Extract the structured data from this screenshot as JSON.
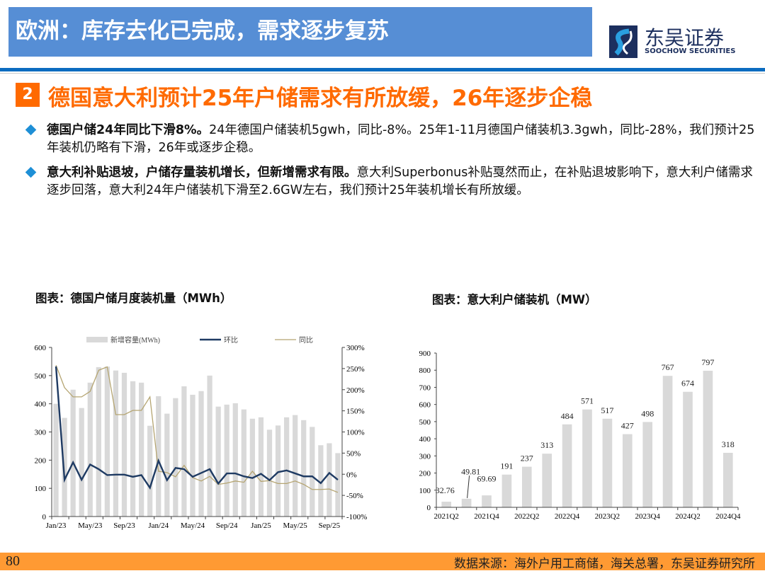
{
  "header": {
    "title": "欧洲：库存去化已完成，需求逐步复苏",
    "logo_cn": "东吴证券",
    "logo_en": "SOOCHOW SECURITIES"
  },
  "section": {
    "number": "2",
    "heading": "德国意大利预计25年户储需求有所放缓，26年逐步企稳"
  },
  "bullets": [
    {
      "bold": "德国户储24年同比下滑8%。",
      "text": "24年德国户储装机5gwh，同比-8%。25年1-11月德国户储装机3.3gwh，同比-28%，我们预计25年装机仍略有下滑，26年或逐步企稳。"
    },
    {
      "bold": "意大利补贴退坡，户储存量装机增长，但新增需求有限。",
      "text": "意大利Superbonus补贴戛然而止，在补贴退坡影响下，意大利户储需求逐步回落，意大利24年户储装机下滑至2.6GW左右，我们预计25年装机增长有所放缓。"
    }
  ],
  "colors": {
    "banner": "#568ed5",
    "accent_orange": "#ff6a00",
    "bullet": "#1e8fd6",
    "bar": "#d9d9d9",
    "mom_line": "#1f3b63",
    "yoy_line": "#b5a572",
    "footer": "#ff9a33"
  },
  "chart_data": [
    {
      "type": "bar+line",
      "title": "图表：德国户储月度装机量（MWh）",
      "categories": [
        "Jan/23",
        "Feb/23",
        "Mar/23",
        "Apr/23",
        "May/23",
        "Jun/23",
        "Jul/23",
        "Aug/23",
        "Sep/23",
        "Oct/23",
        "Nov/23",
        "Dec/23",
        "Jan/24",
        "Feb/24",
        "Mar/24",
        "Apr/24",
        "May/24",
        "Jun/24",
        "Jul/24",
        "Aug/24",
        "Sep/24",
        "Oct/24",
        "Nov/24",
        "Dec/24",
        "Jan/25",
        "Feb/25",
        "Mar/25",
        "Apr/25",
        "May/25",
        "Jun/25",
        "Jul/25",
        "Aug/25",
        "Sep/25",
        "Oct/25"
      ],
      "x_tick_labels": [
        "Jan/23",
        "May/23",
        "Sep/23",
        "Jan/24",
        "May/24",
        "Sep/24",
        "Jan/25",
        "May/25",
        "Sep/25"
      ],
      "series": [
        {
          "name": "新增容量(MWh)",
          "axis": "left",
          "kind": "bar",
          "values": [
            400,
            350,
            450,
            385,
            475,
            530,
            532,
            518,
            510,
            480,
            475,
            322,
            427,
            365,
            420,
            462,
            432,
            445,
            500,
            390,
            397,
            402,
            380,
            347,
            352,
            308,
            323,
            352,
            360,
            342,
            318,
            253,
            260,
            225
          ]
        },
        {
          "name": "环比",
          "axis": "right",
          "kind": "line",
          "values": [
            255,
            -13,
            28,
            -13,
            23,
            12,
            -2,
            -1,
            -1,
            -6,
            -2,
            -32,
            32,
            -14,
            15,
            12,
            -6,
            3,
            12,
            -22,
            2,
            2,
            -5,
            -9,
            1,
            -14,
            5,
            9,
            2,
            -5,
            -5,
            -21,
            3,
            -13
          ]
        },
        {
          "name": "同比",
          "axis": "right",
          "kind": "line",
          "values": [
            258,
            205,
            183,
            183,
            196,
            246,
            254,
            141,
            141,
            151,
            151,
            183,
            7,
            4,
            -6,
            21,
            -8,
            -16,
            -5,
            -24,
            -21,
            -16,
            -19,
            7,
            -17,
            -15,
            -22,
            -22,
            -16,
            -24,
            -36,
            -36,
            -35,
            -43
          ]
        }
      ],
      "ylim_left": [
        0,
        600
      ],
      "yticks_left": [
        "0",
        "100",
        "200",
        "300",
        "400",
        "500",
        "600"
      ],
      "ylim_right": [
        -100,
        300
      ],
      "yticks_right": [
        "-100%",
        "-50%",
        "0%",
        "50%",
        "100%",
        "150%",
        "200%",
        "250%",
        "300%"
      ],
      "legend": "top",
      "grid": false
    },
    {
      "type": "bar",
      "title": "图表：意大利户储装机（MW）",
      "categories": [
        "2021Q2",
        "2021Q3",
        "2021Q4",
        "2022Q1",
        "2022Q2",
        "2022Q3",
        "2022Q4",
        "2023Q1",
        "2023Q2",
        "2023Q3",
        "2023Q4",
        "2024Q1",
        "2024Q2",
        "2024Q3",
        "2024Q4"
      ],
      "x_tick_labels": [
        "2021Q2",
        "2021Q4",
        "2022Q2",
        "2022Q4",
        "2023Q2",
        "2023Q4",
        "2024Q2",
        "2024Q4"
      ],
      "values": [
        32.76,
        49.81,
        69.69,
        191,
        237,
        313,
        484,
        571,
        517,
        427,
        498,
        767,
        674,
        797,
        318
      ],
      "data_labels": [
        "32.76",
        "49.81",
        "69.69",
        "191",
        "237",
        "313",
        "484",
        "571",
        "517",
        "427",
        "498",
        "767",
        "674",
        "797",
        "318"
      ],
      "ylim": [
        0,
        900
      ],
      "yticks": [
        "0",
        "100",
        "200",
        "300",
        "400",
        "500",
        "600",
        "700",
        "800",
        "900"
      ],
      "grid": false
    }
  ],
  "footer": {
    "page": "80",
    "source": "数据来源：海外户用工商储，海关总署，东吴证券研究所"
  }
}
